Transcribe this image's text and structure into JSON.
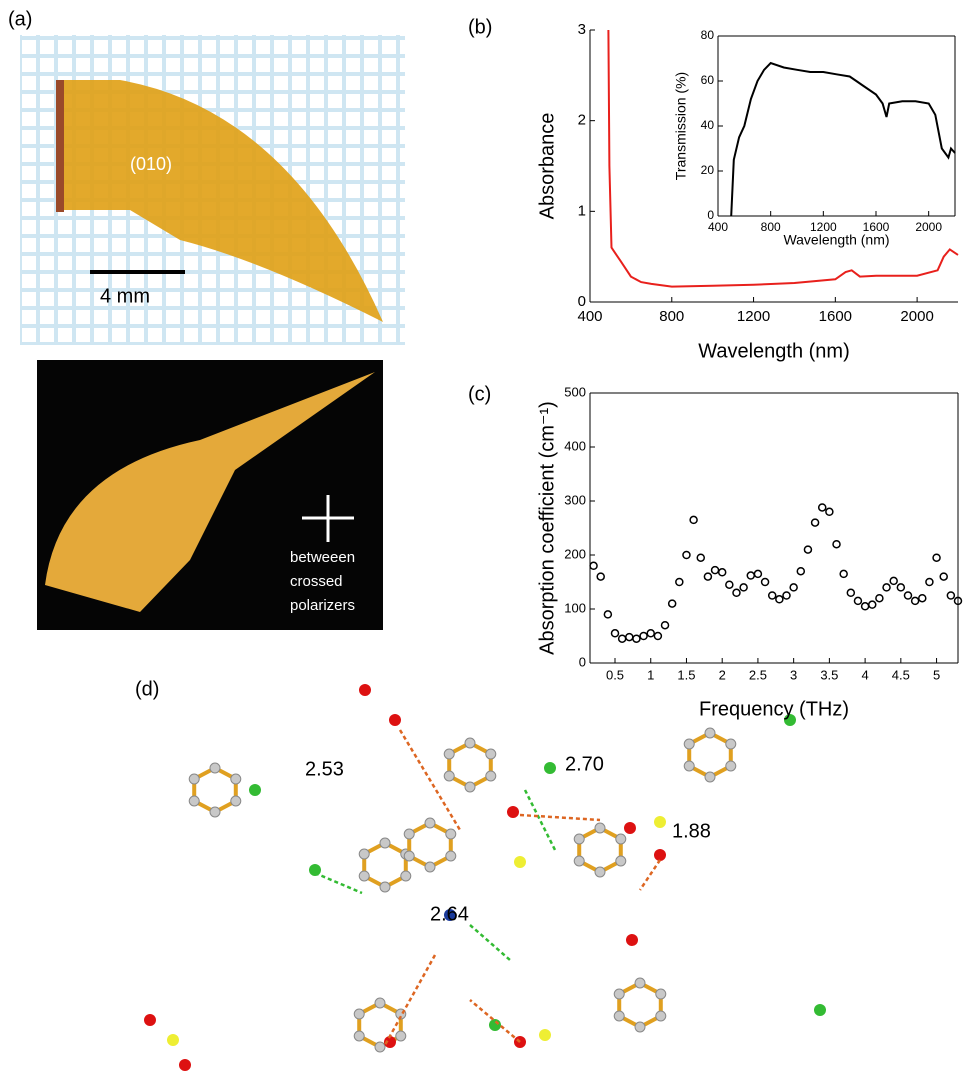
{
  "chart_data": [
    {
      "type": "line",
      "panel_label": "(b)",
      "xlabel": "Wavelength (nm)",
      "ylabel": "Absorbance",
      "x": [
        490,
        495,
        505,
        520,
        550,
        600,
        650,
        700,
        800,
        1000,
        1200,
        1400,
        1600,
        1650,
        1680,
        1720,
        1800,
        2000,
        2100,
        2130,
        2160,
        2200
      ],
      "values": [
        3,
        1.5,
        0.6,
        0.55,
        0.45,
        0.28,
        0.22,
        0.2,
        0.17,
        0.18,
        0.19,
        0.21,
        0.25,
        0.33,
        0.35,
        0.28,
        0.29,
        0.29,
        0.35,
        0.5,
        0.58,
        0.52
      ],
      "color": "#e8201c",
      "xlim": [
        400,
        2200
      ],
      "ylim": [
        0,
        3
      ],
      "xticks": [
        400,
        800,
        1200,
        1600,
        2000
      ],
      "yticks": [
        0,
        1,
        2,
        3
      ]
    },
    {
      "type": "line",
      "xlabel": "Wavelength (nm)",
      "ylabel": "Transmission (%)",
      "x": [
        500,
        520,
        560,
        600,
        650,
        700,
        750,
        800,
        900,
        1000,
        1100,
        1200,
        1300,
        1400,
        1450,
        1500,
        1600,
        1650,
        1680,
        1700,
        1800,
        1900,
        2000,
        2050,
        2100,
        2150,
        2170,
        2200
      ],
      "values": [
        0,
        25,
        35,
        40,
        52,
        60,
        65,
        68,
        66,
        65,
        64,
        64,
        63,
        62,
        60,
        58,
        54,
        50,
        44,
        50,
        51,
        51,
        50,
        45,
        30,
        26,
        30,
        28
      ],
      "color": "#000000",
      "xlim": [
        400,
        2200
      ],
      "ylim": [
        0,
        80
      ],
      "xticks": [
        400,
        800,
        1200,
        1600,
        2000
      ],
      "yticks": [
        0,
        20,
        40,
        60,
        80
      ]
    },
    {
      "type": "scatter",
      "panel_label": "(c)",
      "xlabel": "Frequency (THz)",
      "ylabel": "Absorption coefficient (cm⁻¹)",
      "x": [
        0.2,
        0.3,
        0.4,
        0.5,
        0.6,
        0.7,
        0.8,
        0.9,
        1.0,
        1.1,
        1.2,
        1.3,
        1.4,
        1.5,
        1.6,
        1.7,
        1.8,
        1.9,
        2.0,
        2.1,
        2.2,
        2.3,
        2.4,
        2.5,
        2.6,
        2.7,
        2.8,
        2.9,
        3.0,
        3.1,
        3.2,
        3.3,
        3.4,
        3.5,
        3.6,
        3.7,
        3.8,
        3.9,
        4.0,
        4.1,
        4.2,
        4.3,
        4.4,
        4.5,
        4.6,
        4.7,
        4.8,
        4.9,
        5.0,
        5.1,
        5.2,
        5.3
      ],
      "values": [
        180,
        160,
        90,
        55,
        45,
        48,
        45,
        50,
        55,
        50,
        70,
        110,
        150,
        200,
        265,
        195,
        160,
        172,
        168,
        145,
        130,
        140,
        162,
        165,
        150,
        125,
        118,
        125,
        140,
        170,
        210,
        260,
        288,
        280,
        220,
        165,
        130,
        115,
        105,
        108,
        120,
        140,
        152,
        140,
        125,
        115,
        120,
        150,
        195,
        160,
        125,
        115
      ],
      "color": "#000000",
      "xlim": [
        0.15,
        5.3
      ],
      "ylim": [
        0,
        500
      ],
      "xticks": [
        0.5,
        1.0,
        1.5,
        2.0,
        2.5,
        3.0,
        3.5,
        4.0,
        4.5,
        5.0
      ],
      "yticks": [
        0,
        100,
        200,
        300,
        400,
        500
      ]
    }
  ],
  "panel_a": {
    "label": "(a)",
    "face": "(010)",
    "scale": "4 mm",
    "note": [
      "betweeen",
      "crossed",
      "polarizers"
    ]
  },
  "panel_d": {
    "label": "(d)",
    "distances": [
      "2.53",
      "2.70",
      "1.88",
      "2.64"
    ]
  }
}
